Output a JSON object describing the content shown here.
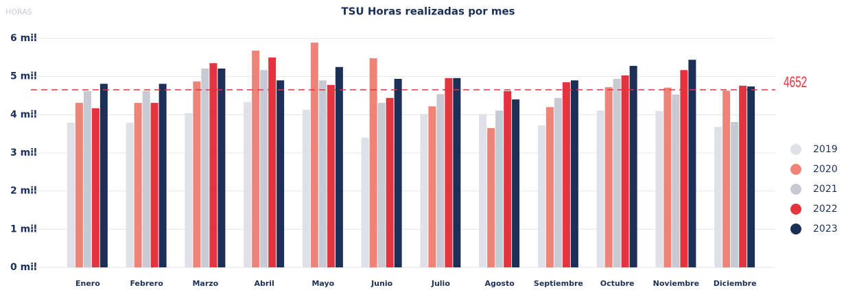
{
  "chart_data": {
    "type": "bar",
    "title": "TSU Horas realizadas por mes",
    "ylabel": "HORAS",
    "categories": [
      "Enero",
      "Febrero",
      "Marzo",
      "Abril",
      "Mayo",
      "Junio",
      "Julio",
      "Agosto",
      "Septiembre",
      "Octubre",
      "Noviembre",
      "Diciembre"
    ],
    "series": [
      {
        "name": "2019",
        "color": "#dfe0e8",
        "values": [
          3790,
          3790,
          4040,
          4330,
          4130,
          3400,
          4020,
          4020,
          3720,
          4110,
          4100,
          3680
        ]
      },
      {
        "name": "2020",
        "color": "#ee8377",
        "values": [
          4310,
          4310,
          4870,
          5680,
          5890,
          5480,
          4220,
          3650,
          4200,
          4720,
          4710,
          4630
        ]
      },
      {
        "name": "2021",
        "color": "#c8c9d3",
        "values": [
          4620,
          4620,
          5210,
          5170,
          4900,
          4310,
          4540,
          4110,
          4440,
          4940,
          4530,
          3810
        ]
      },
      {
        "name": "2022",
        "color": "#e4343f",
        "values": [
          4170,
          4310,
          5350,
          5500,
          4780,
          4440,
          4960,
          4620,
          4850,
          5030,
          5170,
          4760
        ]
      },
      {
        "name": "2023",
        "color": "#1c2f57",
        "values": [
          4810,
          4810,
          5210,
          4900,
          5250,
          4940,
          4960,
          4400,
          4900,
          5280,
          5440,
          4740
        ]
      }
    ],
    "ylim": [
      0,
      6000
    ],
    "yticks": [
      {
        "value": 0,
        "label": "0 mil"
      },
      {
        "value": 1000,
        "label": "1 mil"
      },
      {
        "value": 2000,
        "label": "2 mil"
      },
      {
        "value": 3000,
        "label": "3 mil"
      },
      {
        "value": 4000,
        "label": "4 mil"
      },
      {
        "value": 5000,
        "label": "5 mil"
      },
      {
        "value": 6000,
        "label": "6 mil"
      }
    ],
    "grid": true,
    "legend": "right",
    "reference_line": 4652,
    "reference_color": "#e4343f"
  }
}
